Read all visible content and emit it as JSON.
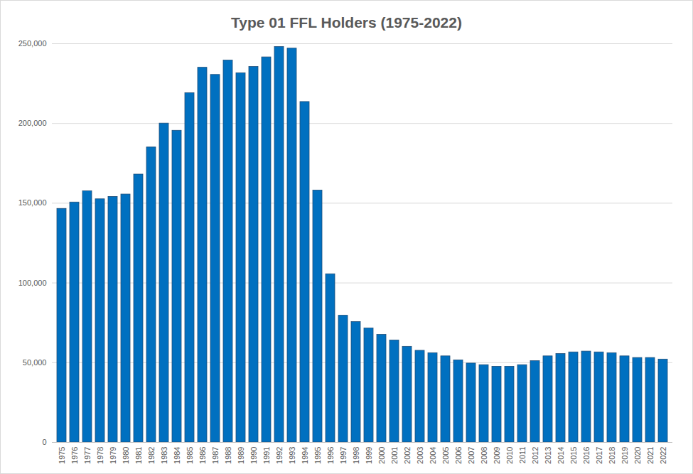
{
  "chart_data": {
    "type": "bar",
    "title": "Type 01 FFL Holders (1975-2022)",
    "categories": [
      "1975",
      "1976",
      "1977",
      "1978",
      "1979",
      "1980",
      "1981",
      "1982",
      "1983",
      "1984",
      "1985",
      "1986",
      "1987",
      "1988",
      "1989",
      "1990",
      "1991",
      "1992",
      "1993",
      "1994",
      "1995",
      "1996",
      "1997",
      "1998",
      "1999",
      "2000",
      "2001",
      "2002",
      "2003",
      "2004",
      "2005",
      "2006",
      "2007",
      "2008",
      "2009",
      "2010",
      "2011",
      "2012",
      "2013",
      "2014",
      "2015",
      "2016",
      "2017",
      "2018",
      "2019",
      "2020",
      "2021",
      "2022"
    ],
    "values": [
      146500,
      150500,
      157500,
      152500,
      154000,
      155500,
      168000,
      185000,
      200000,
      195500,
      219000,
      235000,
      230500,
      239500,
      231500,
      235500,
      241500,
      248000,
      247000,
      213500,
      158000,
      105500,
      79500,
      75500,
      71500,
      67500,
      64000,
      60000,
      57500,
      56000,
      54000,
      51500,
      49500,
      48500,
      47500,
      47500,
      48500,
      51000,
      54000,
      55500,
      56500,
      57000,
      56500,
      56000,
      54000,
      53000,
      53000,
      52000
    ],
    "color": "#0070c0",
    "ylim": [
      0,
      250000
    ],
    "yticks": [
      0,
      {
        "value": 50000,
        "label": "50,000"
      },
      {
        "value": 100000,
        "label": "100,000"
      },
      {
        "value": 150000,
        "label": "150,000"
      },
      {
        "value": 200000,
        "label": "200,000"
      },
      {
        "value": 250000,
        "label": "250,000"
      }
    ],
    "grid": true
  }
}
